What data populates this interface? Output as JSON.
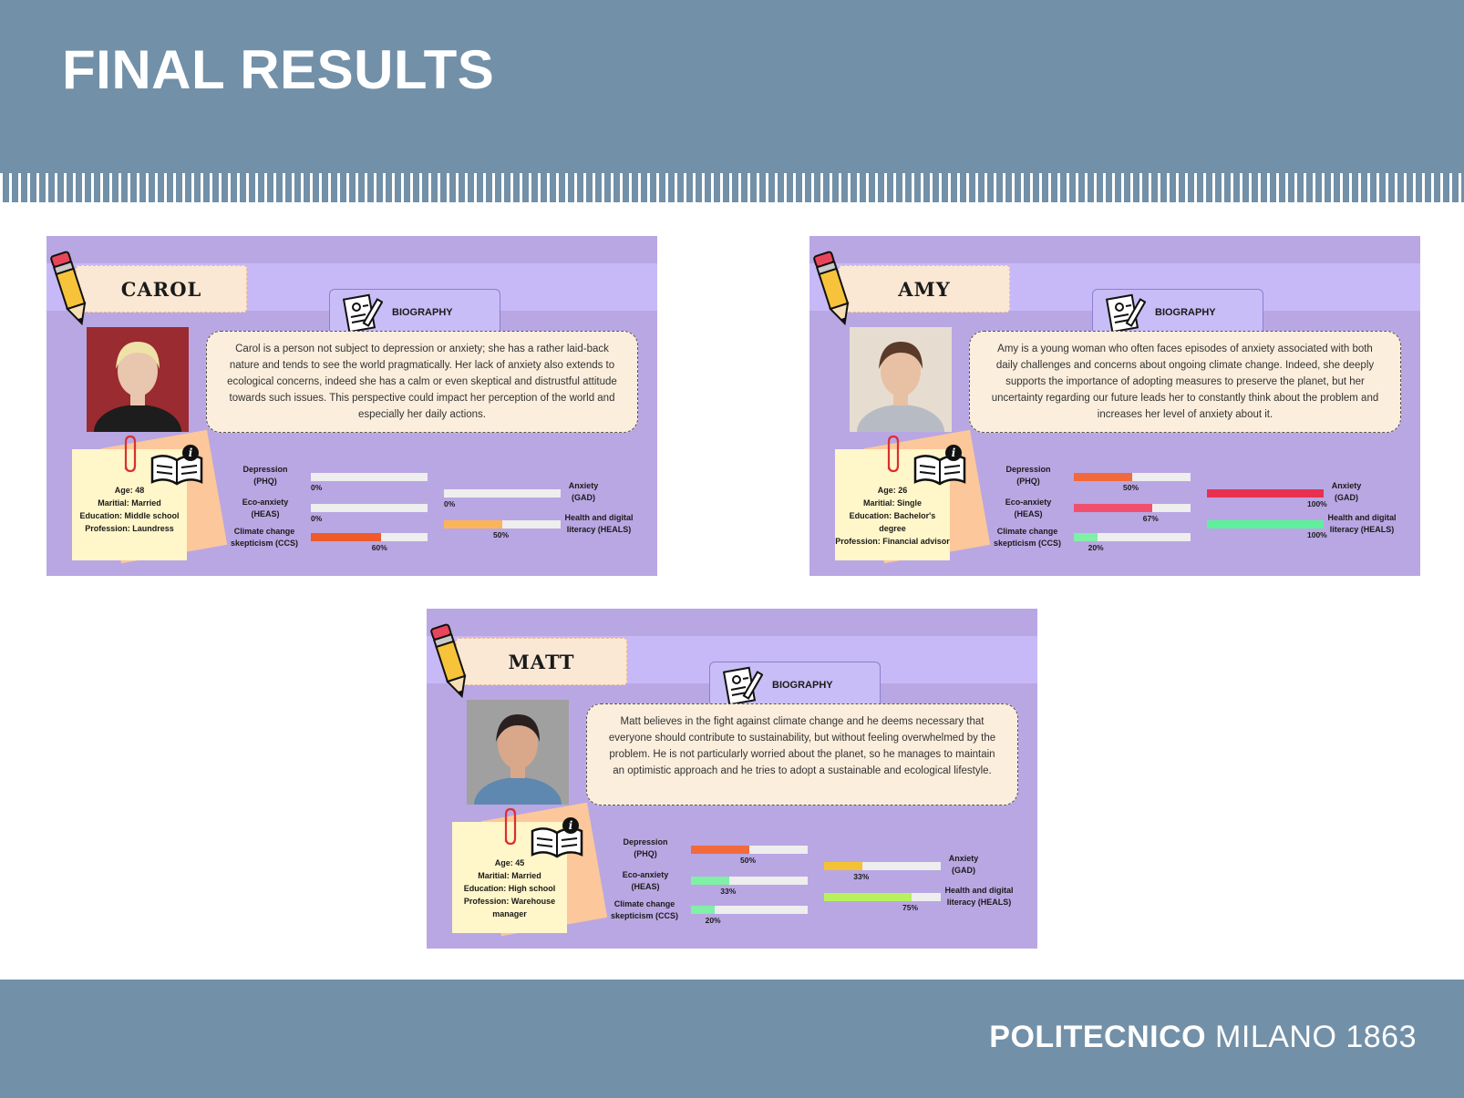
{
  "slide": {
    "title": "FINAL RESULTS",
    "footer_bold": "POLITECNICO",
    "footer_rest": " MILANO 1863"
  },
  "labels": {
    "biography": "BIOGRAPHY",
    "depression": "Depression (PHQ)",
    "eco_anxiety": "Eco-anxiety (HEAS)",
    "skepticism": "Climate change skepticism (CCS)",
    "anxiety": "Anxiety (GAD)",
    "health": "Health and digital literacy (HEALS)"
  },
  "colors": {
    "header_bg": "#7290a8",
    "card_bg": "#b9a7e3",
    "bar_orange": "#f26a3c",
    "bar_red_orange": "#ef5a2a",
    "bar_pink": "#f24f6f",
    "bar_green": "#7ff0a6",
    "bar_crimson": "#e8314e",
    "bar_yellow": "#f3c234",
    "bar_lime": "#b8f05e",
    "bar_peach": "#fbb45a"
  },
  "personas": [
    {
      "name": "CAROL",
      "bio": "Carol is a person not subject to depression or anxiety; she has a rather laid-back nature and tends to see the world pragmatically. Her lack of anxiety also extends to ecological concerns, indeed she has a calm or even skeptical and distrustful attitude towards such issues. This perspective could impact her perception of the world  and especially her daily actions.",
      "info": [
        "Age: 48",
        "Maritial: Married",
        "Education: Middle school",
        "Profession: Laundress"
      ],
      "metrics": {
        "depression": {
          "value": 0,
          "label": "0%",
          "color": "#f26a3c"
        },
        "eco_anxiety": {
          "value": 0,
          "label": "0%",
          "color": "#f24f6f"
        },
        "skepticism": {
          "value": 60,
          "label": "60%",
          "color": "#ef5a2a"
        },
        "anxiety": {
          "value": 0,
          "label": "0%",
          "color": "#e8314e"
        },
        "health": {
          "value": 50,
          "label": "50%",
          "color": "#fbb45a"
        }
      }
    },
    {
      "name": "AMY",
      "bio": "Amy is a young woman who often faces episodes of anxiety associated with both daily challenges and concerns about ongoing climate change. Indeed, she deeply supports the importance of adopting measures to preserve the planet, but her uncertainty regarding our future leads her to constantly think about the problem and increases her level of anxiety about it.",
      "info": [
        "Age: 26",
        "Maritial: Single",
        "Education: Bachelor's degree",
        "Profession: Financial advisor"
      ],
      "metrics": {
        "depression": {
          "value": 50,
          "label": "50%",
          "color": "#f26a3c"
        },
        "eco_anxiety": {
          "value": 67,
          "label": "67%",
          "color": "#f24f6f"
        },
        "skepticism": {
          "value": 20,
          "label": "20%",
          "color": "#7ff0a6"
        },
        "anxiety": {
          "value": 100,
          "label": "100%",
          "color": "#e8314e"
        },
        "health": {
          "value": 100,
          "label": "100%",
          "color": "#5ef09a"
        }
      }
    },
    {
      "name": "MATT",
      "bio": "Matt believes in the fight against climate change and he deems necessary that everyone should contribute to sustainability, but without feeling overwhelmed by the problem. He is not particularly worried about the planet, so he manages to maintain an optimistic approach and he tries to adopt a sustainable and ecological lifestyle.",
      "info": [
        "Age: 45",
        "Maritial: Married",
        "Education: High school",
        "Profession: Warehouse manager"
      ],
      "metrics": {
        "depression": {
          "value": 50,
          "label": "50%",
          "color": "#f26a3c"
        },
        "eco_anxiety": {
          "value": 33,
          "label": "33%",
          "color": "#7ff0a6"
        },
        "skepticism": {
          "value": 20,
          "label": "20%",
          "color": "#7ff0a6"
        },
        "anxiety": {
          "value": 33,
          "label": "33%",
          "color": "#f3c234"
        },
        "health": {
          "value": 75,
          "label": "75%",
          "color": "#b8f05e"
        }
      }
    }
  ]
}
